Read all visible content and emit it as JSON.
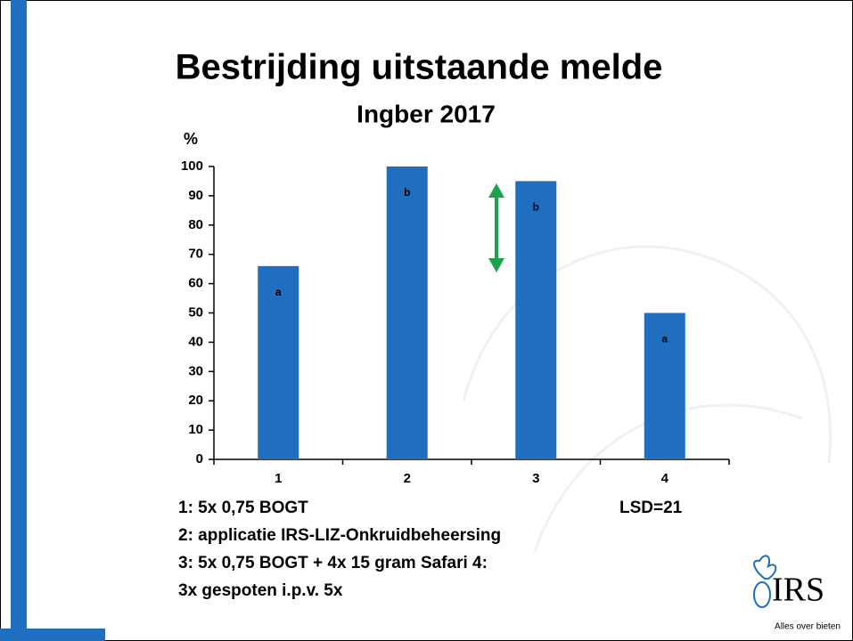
{
  "chart_data": {
    "type": "bar",
    "title": "Bestrijding uitstaande melde",
    "subtitle": "Ingber 2017",
    "y_label": "%",
    "categories": [
      "1",
      "2",
      "3",
      "4"
    ],
    "values": [
      66,
      100,
      95,
      50
    ],
    "letters": [
      "a",
      "b",
      "b",
      "a"
    ],
    "color": "#1f6ebf",
    "ylim": [
      0,
      100
    ],
    "yticks": [
      0,
      10,
      20,
      30,
      40,
      50,
      60,
      70,
      80,
      90,
      100
    ],
    "notes": [
      "1: 5x 0,75 BOGT",
      "2: applicatie IRS-LIZ-Onkruidbeheersing",
      "3: 5x 0,75 BOGT + 4x 15 gram Safari 4:",
      "3x gespoten i.p.v. 5x"
    ],
    "lsd": "LSD=21"
  },
  "logo": {
    "name": "IRS",
    "tagline": "Alles over bieten"
  }
}
